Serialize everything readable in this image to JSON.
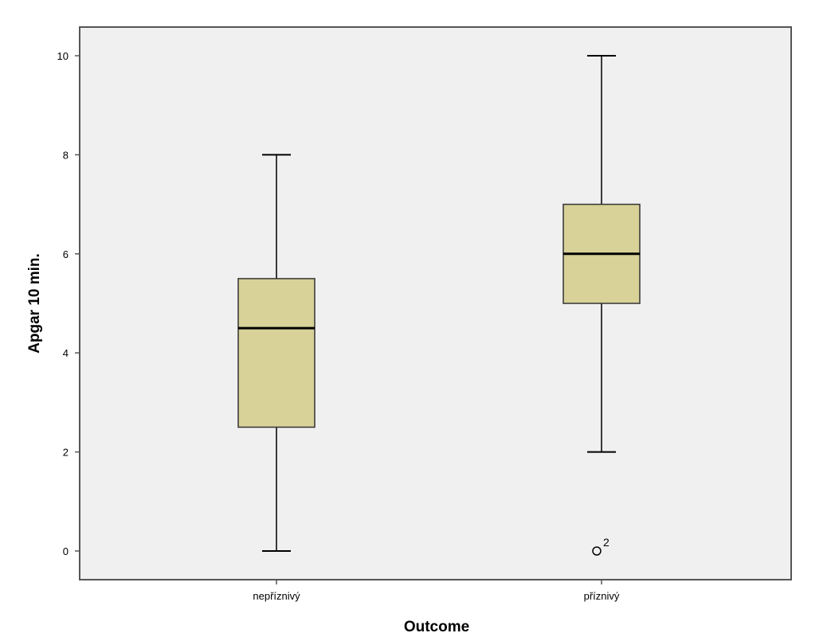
{
  "chart_data": {
    "type": "box",
    "xlabel": "Outcome",
    "ylabel": "Apgar 10 min.",
    "ylim": [
      -0.6,
      10.6
    ],
    "yticks": [
      0,
      2,
      4,
      6,
      8,
      10
    ],
    "ytick_labels": [
      "0",
      "2",
      "4",
      "6",
      "8",
      "10"
    ],
    "categories": [
      "nepříznivý",
      "příznivý"
    ],
    "boxes": [
      {
        "category": "nepříznivý",
        "whisker_low": 0,
        "q1": 2.5,
        "median": 4.5,
        "q3": 5.5,
        "whisker_high": 8,
        "outliers": []
      },
      {
        "category": "příznivý",
        "whisker_low": 2,
        "q1": 5,
        "median": 6,
        "q3": 7,
        "whisker_high": 10,
        "outliers": [
          {
            "value": 0,
            "label": "2"
          }
        ]
      }
    ],
    "grid": false,
    "colors": {
      "plot_background": "#f0f0f0",
      "box_fill": "#d8d198",
      "line": "#000000",
      "whisker": "#3a3a3a",
      "frame": "#555555"
    }
  }
}
